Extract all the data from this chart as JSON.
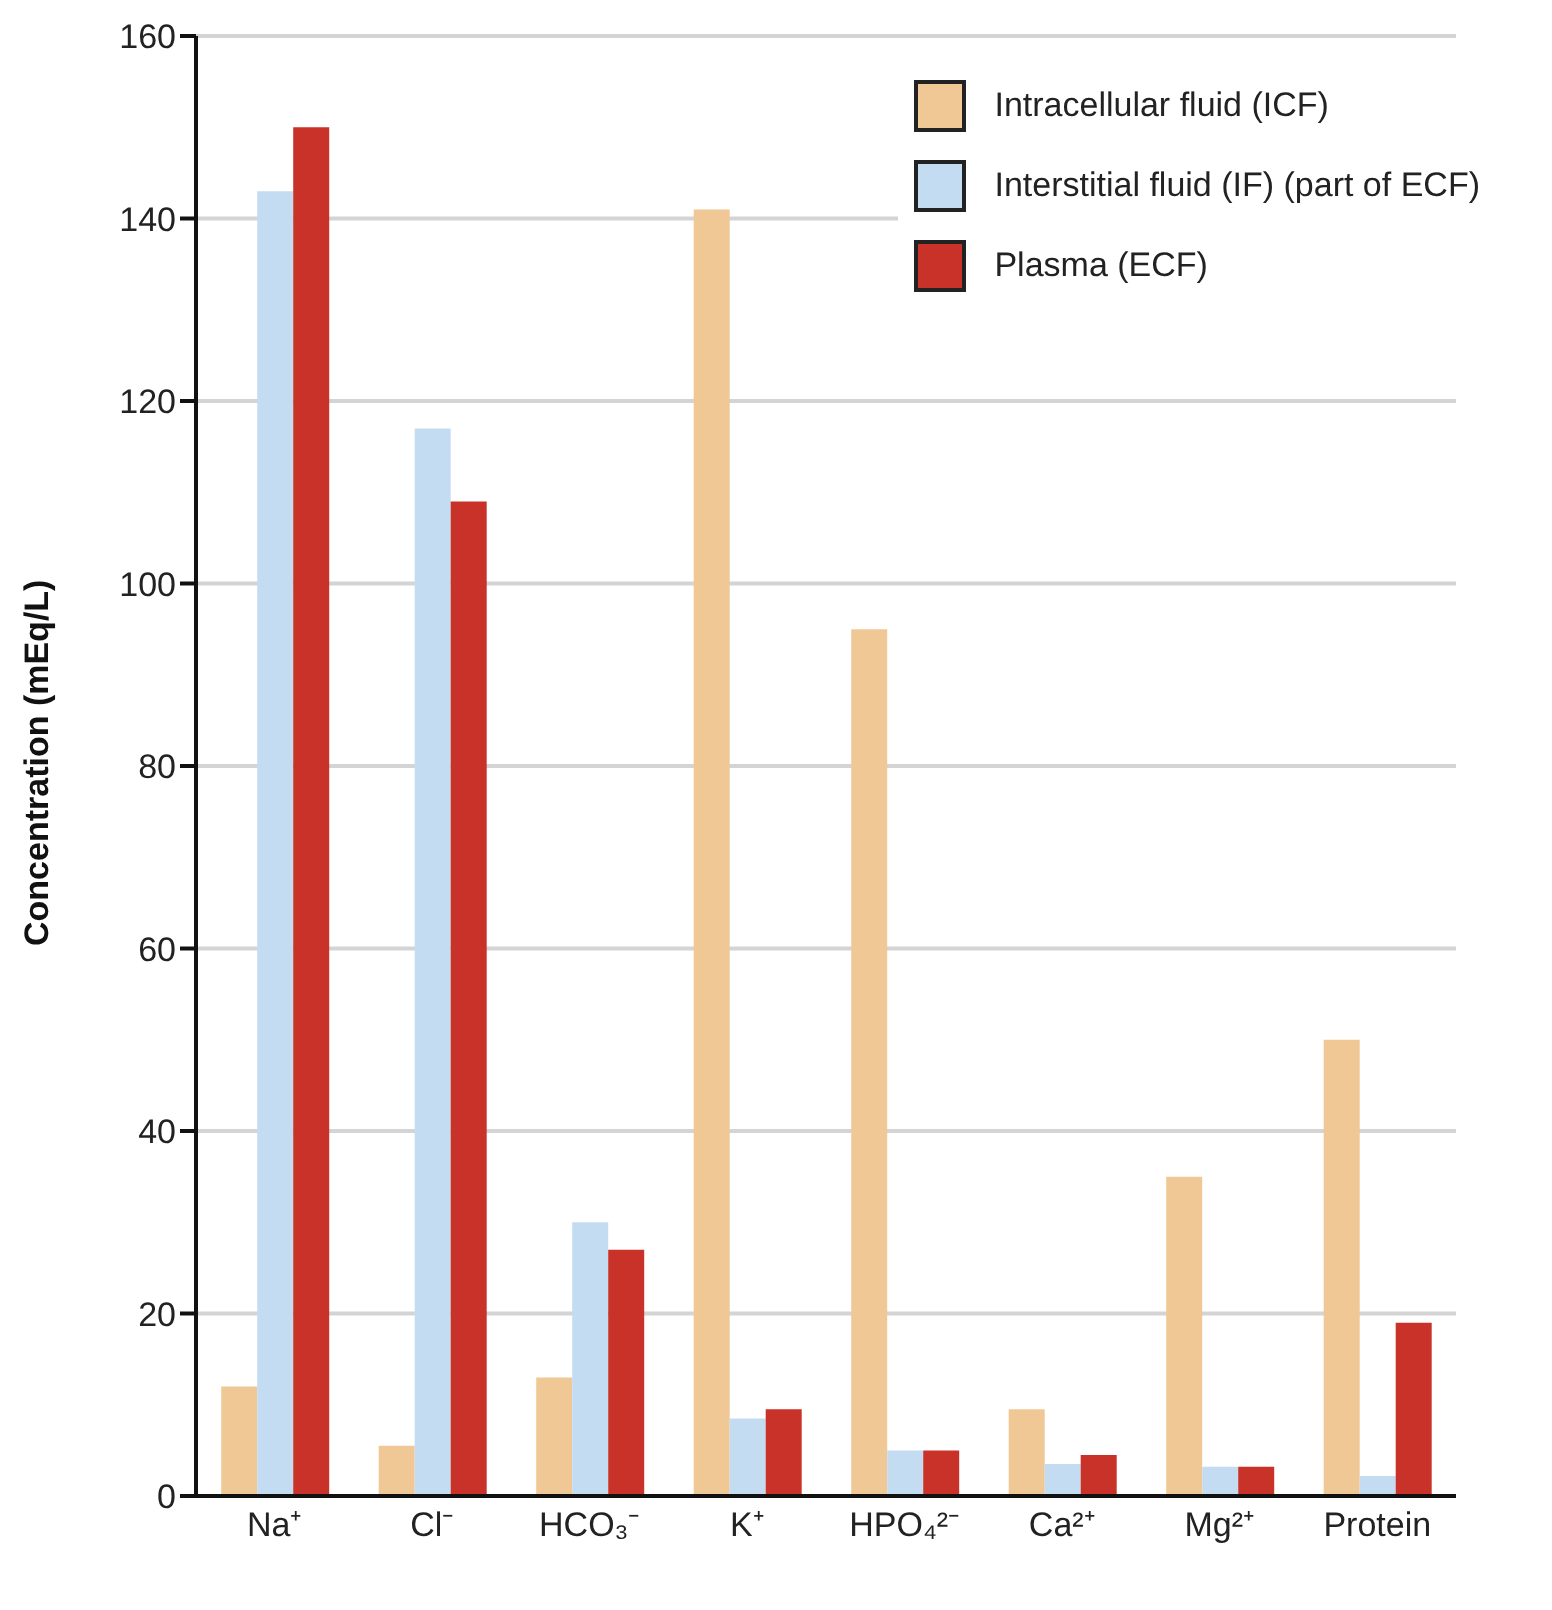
{
  "chart_data": {
    "type": "bar",
    "ylabel": "Concentration (mEq/L)",
    "categories": [
      "Na⁺",
      "Cl⁻",
      "HCO₃⁻",
      "K⁺",
      "HPO₄²⁻",
      "Ca²⁺",
      "Mg²⁺",
      "Protein"
    ],
    "series": [
      {
        "name": "Intracellular fluid (ICF)",
        "color": "#f0c896",
        "values": [
          12,
          5.5,
          13,
          141,
          95,
          9.5,
          35,
          50
        ]
      },
      {
        "name": "Interstitial fluid (IF) (part of ECF)",
        "color": "#c4dcf2",
        "values": [
          143,
          117,
          30,
          8.5,
          5,
          3.5,
          3.2,
          2.2
        ]
      },
      {
        "name": "Plasma (ECF)",
        "color": "#c83228",
        "values": [
          150,
          109,
          27,
          9.5,
          5,
          4.5,
          3.2,
          19
        ]
      }
    ],
    "ylim": [
      0,
      160
    ],
    "yticks": [
      0,
      20,
      40,
      60,
      80,
      100,
      120,
      140,
      160
    ],
    "grid": "y",
    "legend": "top right"
  }
}
